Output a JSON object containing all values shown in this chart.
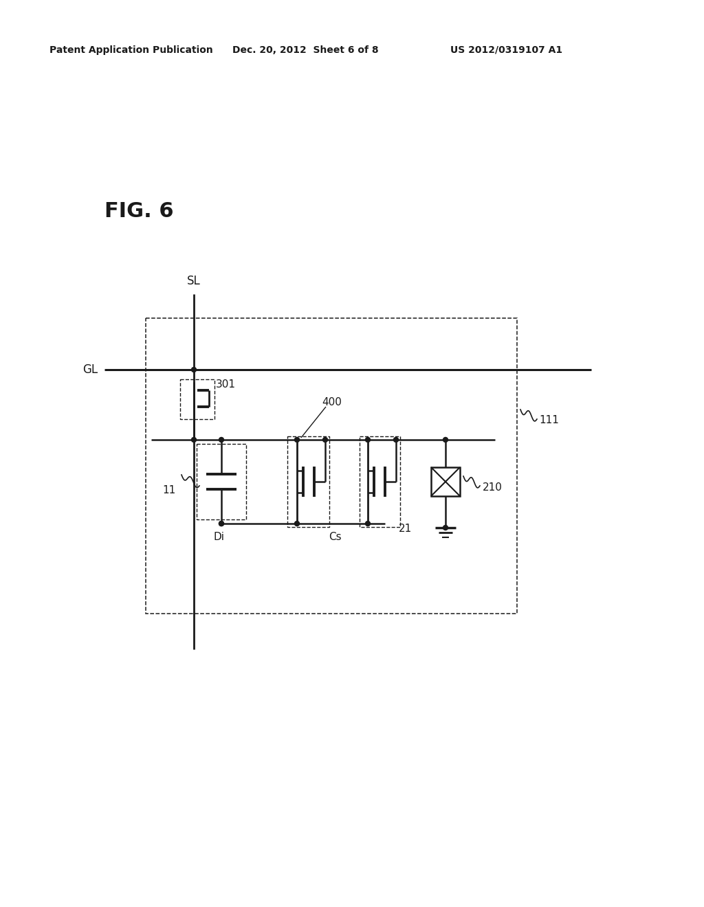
{
  "bg_color": "#ffffff",
  "line_color": "#1a1a1a",
  "header_left": "Patent Application Publication",
  "header_center": "Dec. 20, 2012  Sheet 6 of 8",
  "header_right": "US 2012/0319107 A1",
  "fig_label": "FIG. 6",
  "label_SL": "SL",
  "label_GL": "GL",
  "label_301": "301",
  "label_400": "400",
  "label_111": "111",
  "label_210": "210",
  "label_11": "11",
  "label_Di": "Di",
  "label_Cs": "Cs",
  "label_21": "21"
}
